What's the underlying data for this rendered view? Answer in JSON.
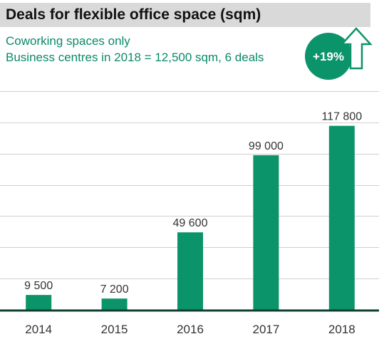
{
  "chart_data": {
    "type": "bar",
    "title": "Deals for flexible office space (sqm)",
    "subtitle_lines": [
      "Coworking spaces only",
      "Business centres in 2018 = 12,500 sqm, 6 deals"
    ],
    "categories": [
      "2014",
      "2015",
      "2016",
      "2017",
      "2018"
    ],
    "values": [
      9500,
      7200,
      49600,
      99000,
      117800
    ],
    "value_labels": [
      "9 500",
      "7 200",
      "49 600",
      "99 000",
      "117 800"
    ],
    "ylim": [
      0,
      140000
    ],
    "grid": true,
    "badge": {
      "text": "+19%",
      "icon": "up-arrow-icon"
    },
    "colors": {
      "bar": "#0b9469",
      "subtitle": "#0a8a6a",
      "badge": "#0b9469",
      "axis": "#0f3d30",
      "grid": "#cfcfcf"
    }
  }
}
